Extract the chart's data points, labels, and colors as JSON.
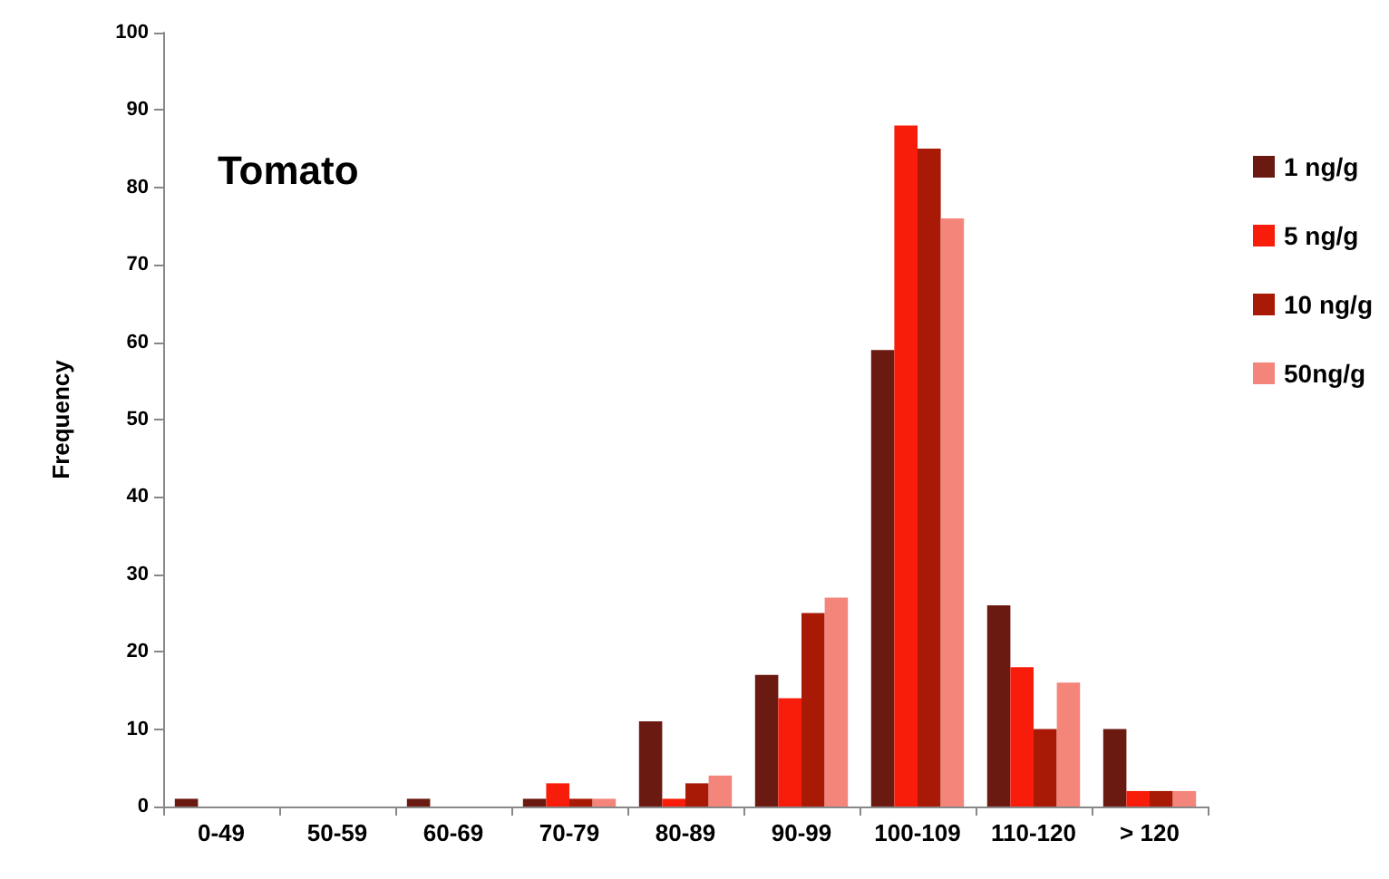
{
  "chart_data": {
    "type": "bar",
    "title": "Tomato",
    "ylabel": "Frequency",
    "categories": [
      "0-49",
      "50-59",
      "60-69",
      "70-79",
      "80-89",
      "90-99",
      "100-109",
      "110-120",
      "> 120"
    ],
    "series": [
      {
        "name": "1 ng/g",
        "color": "#6b1a12",
        "values": [
          1,
          0,
          1,
          1,
          11,
          17,
          59,
          26,
          10
        ]
      },
      {
        "name": "5 ng/g",
        "color": "#f81d0a",
        "values": [
          0,
          0,
          0,
          3,
          1,
          14,
          88,
          18,
          2
        ]
      },
      {
        "name": "10 ng/g",
        "color": "#a81a05",
        "values": [
          0,
          0,
          0,
          1,
          3,
          25,
          85,
          10,
          2
        ]
      },
      {
        "name": "50ng/g",
        "color": "#f4857a",
        "values": [
          0,
          0,
          0,
          1,
          4,
          27,
          76,
          16,
          2
        ]
      }
    ],
    "ylim": [
      0,
      100
    ],
    "yticks": [
      0,
      10,
      20,
      30,
      40,
      50,
      60,
      70,
      80,
      90,
      100
    ],
    "grid": false,
    "legend": "right"
  }
}
